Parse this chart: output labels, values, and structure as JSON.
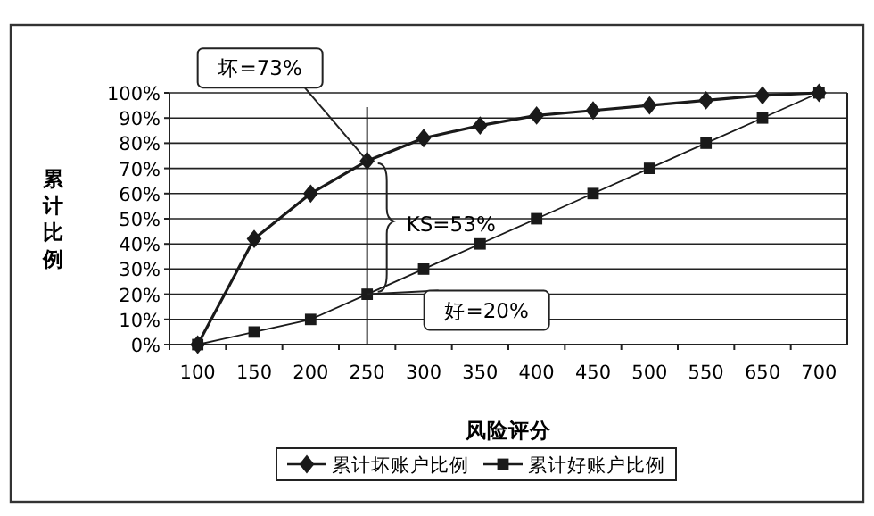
{
  "chart_data": {
    "type": "line",
    "xlabel": "风险评分",
    "ylabel": "累计比例",
    "categories": [
      "100",
      "150",
      "200",
      "250",
      "300",
      "350",
      "400",
      "450",
      "500",
      "550",
      "650",
      "700"
    ],
    "series": [
      {
        "name": "累计坏账户比例",
        "color": "#1a1a1a",
        "marker": "diamond",
        "values": [
          0,
          42,
          60,
          73,
          82,
          87,
          91,
          93,
          95,
          97,
          99,
          100
        ]
      },
      {
        "name": "累计好账户比例",
        "color": "#1a1a1a",
        "marker": "square",
        "values": [
          0,
          5,
          10,
          20,
          30,
          40,
          50,
          60,
          70,
          80,
          90,
          100
        ]
      }
    ],
    "ylim": [
      0,
      100
    ],
    "yticks": [
      {
        "value": 0,
        "label": "0%"
      },
      {
        "value": 10,
        "label": "10%"
      },
      {
        "value": 20,
        "label": "20%"
      },
      {
        "value": 30,
        "label": "30%"
      },
      {
        "value": 40,
        "label": "40%"
      },
      {
        "value": 50,
        "label": "50%"
      },
      {
        "value": 60,
        "label": "60%"
      },
      {
        "value": 70,
        "label": "70%"
      },
      {
        "value": 80,
        "label": "80%"
      },
      {
        "value": 90,
        "label": "90%"
      },
      {
        "value": 100,
        "label": "100%"
      }
    ],
    "grid": "y",
    "legend": "bottom",
    "line_style": "solid",
    "ref_lines": [
      {
        "axis": "x",
        "value": "250"
      }
    ],
    "annotations": [
      {
        "text": "坏=73%",
        "x": "250",
        "y": 73
      },
      {
        "text": "KS=53%"
      },
      {
        "text": "好=20%",
        "x": "250",
        "y": 20
      }
    ]
  }
}
